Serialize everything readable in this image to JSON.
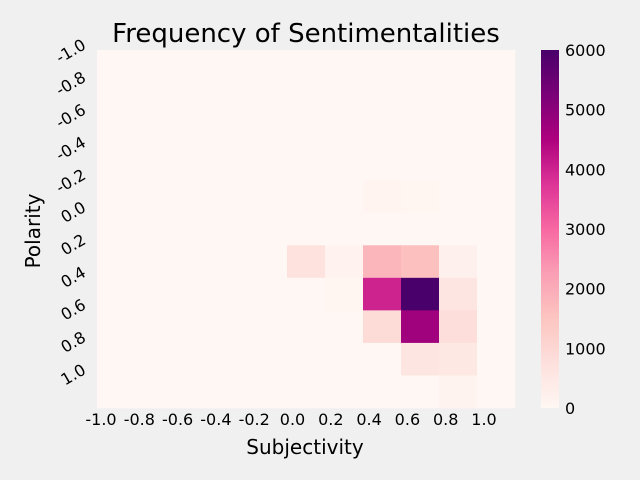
{
  "chart_data": {
    "type": "heatmap",
    "title": "Frequency of Sentimentalities",
    "xlabel": "Subjectivity",
    "ylabel": "Polarity",
    "x_ticks": [
      "-1.0",
      "-0.8",
      "-0.6",
      "-0.4",
      "-0.2",
      "0.0",
      "0.2",
      "0.4",
      "0.6",
      "0.8",
      "1.0"
    ],
    "y_ticks": [
      "-1.0",
      "-0.8",
      "-0.6",
      "-0.4",
      "-0.2",
      "0.0",
      "0.2",
      "0.4",
      "0.6",
      "0.8",
      "1.0"
    ],
    "colorbar": {
      "min": 0,
      "max": 6000,
      "ticks": [
        0,
        1000,
        2000,
        3000,
        4000,
        5000,
        6000
      ],
      "cmap": "RdPu"
    },
    "rows": [
      [
        0,
        0,
        0,
        0,
        0,
        0,
        0,
        0,
        0,
        0,
        0
      ],
      [
        0,
        0,
        0,
        0,
        0,
        0,
        0,
        0,
        0,
        0,
        0
      ],
      [
        0,
        0,
        0,
        0,
        0,
        0,
        0,
        0,
        0,
        0,
        0
      ],
      [
        0,
        0,
        0,
        0,
        0,
        0,
        0,
        0,
        0,
        0,
        0
      ],
      [
        0,
        0,
        0,
        0,
        0,
        0,
        0,
        100,
        80,
        10,
        0
      ],
      [
        0,
        0,
        0,
        0,
        0,
        0,
        0,
        0,
        0,
        0,
        0
      ],
      [
        0,
        0,
        0,
        0,
        0,
        700,
        150,
        1800,
        1600,
        200,
        0
      ],
      [
        0,
        0,
        0,
        0,
        0,
        0,
        80,
        4000,
        6000,
        600,
        0
      ],
      [
        0,
        0,
        0,
        0,
        0,
        0,
        0,
        900,
        4700,
        800,
        0
      ],
      [
        0,
        0,
        0,
        0,
        0,
        0,
        0,
        0,
        600,
        500,
        0
      ],
      [
        0,
        0,
        0,
        0,
        0,
        0,
        0,
        0,
        0,
        120,
        0
      ]
    ],
    "grid": false
  }
}
